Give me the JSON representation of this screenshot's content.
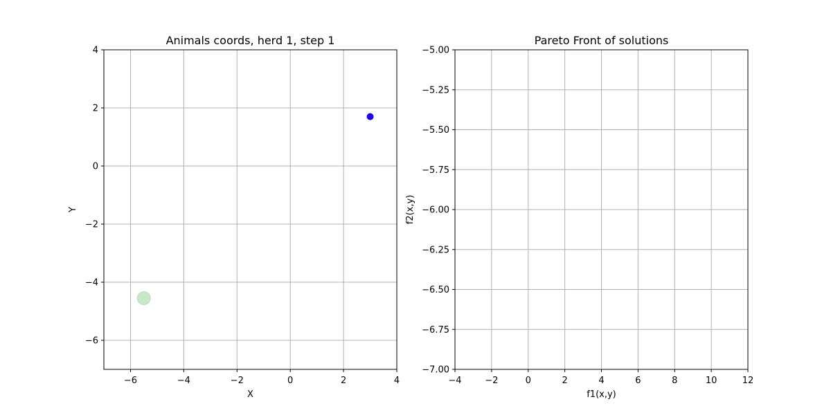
{
  "colors": {
    "grid": "#b0b0b0",
    "axes": "#000000",
    "point_blue": "#0000ff",
    "point_red": "#cc2222",
    "point_green": "#2ca02c"
  },
  "chart_data": [
    {
      "type": "scatter",
      "title": "Animals coords, herd 1, step 1",
      "xlabel": "X",
      "ylabel": "Y",
      "xlim": [
        -7,
        4
      ],
      "ylim": [
        -7,
        4
      ],
      "xticks": [
        -6,
        -4,
        -2,
        0,
        2,
        4
      ],
      "yticks": [
        -6,
        -4,
        -2,
        0,
        2,
        4
      ],
      "xtick_labels": [
        "−6",
        "−4",
        "−2",
        "0",
        "2",
        "4"
      ],
      "ytick_labels": [
        "−6",
        "−4",
        "−2",
        "0",
        "2",
        "4"
      ],
      "grid": true,
      "series": [
        {
          "points": [
            {
              "x": -5.5,
              "y": -4.55
            }
          ],
          "color": "#2ca02c",
          "marker": "large-circle",
          "opacity": 0.25
        },
        {
          "points": [
            {
              "x": 3.0,
              "y": 1.7
            }
          ],
          "color": "#cc2222",
          "marker": "circle",
          "opacity": 1.0
        },
        {
          "points": [
            {
              "x": 3.0,
              "y": 1.7
            }
          ],
          "color": "#0000ff",
          "marker": "circle",
          "opacity": 0.85
        }
      ]
    },
    {
      "type": "scatter",
      "title": "Pareto Front of solutions",
      "xlabel": "f1(x,y)",
      "ylabel": "f2(x,y)",
      "xlim": [
        -4,
        12
      ],
      "ylim": [
        -7,
        -5
      ],
      "xticks": [
        -4,
        -2,
        0,
        2,
        4,
        6,
        8,
        10,
        12
      ],
      "yticks": [
        -7.0,
        -6.75,
        -6.5,
        -6.25,
        -6.0,
        -5.75,
        -5.5,
        -5.25,
        -5.0
      ],
      "xtick_labels": [
        "−4",
        "−2",
        "0",
        "2",
        "4",
        "6",
        "8",
        "10",
        "12"
      ],
      "ytick_labels": [
        "−7.00",
        "−6.75",
        "−6.50",
        "−6.25",
        "−6.00",
        "−5.75",
        "−5.50",
        "−5.25",
        "−5.00"
      ],
      "grid": true,
      "series": []
    }
  ]
}
